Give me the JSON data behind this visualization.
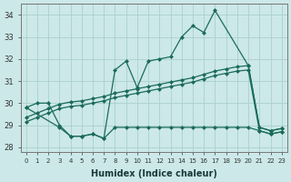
{
  "xlabel": "Humidex (Indice chaleur)",
  "background_color": "#cce8e8",
  "line_color": "#1a6b5a",
  "grid_color": "#aacfcf",
  "xlim": [
    -0.5,
    23.5
  ],
  "ylim": [
    27.8,
    34.5
  ],
  "yticks": [
    28,
    29,
    30,
    31,
    32,
    33,
    34
  ],
  "xticks": [
    0,
    1,
    2,
    3,
    4,
    5,
    6,
    7,
    8,
    9,
    10,
    11,
    12,
    13,
    14,
    15,
    16,
    17,
    18,
    19,
    20,
    21,
    22,
    23
  ],
  "main_x": [
    0,
    1,
    2,
    3,
    4,
    5,
    6,
    7,
    8,
    9,
    10,
    11,
    12,
    13,
    14,
    15,
    16,
    17,
    20,
    21,
    22,
    23
  ],
  "main_y": [
    29.8,
    30.0,
    30.0,
    29.0,
    28.5,
    28.5,
    28.6,
    28.4,
    31.5,
    31.9,
    30.7,
    31.9,
    32.0,
    32.1,
    33.0,
    33.5,
    33.2,
    34.2,
    31.7,
    28.9,
    28.75,
    28.85
  ],
  "line2_x": [
    0,
    1,
    2,
    3,
    4,
    5,
    6,
    7,
    8,
    9,
    10,
    11,
    12,
    13,
    14,
    15,
    16,
    17,
    18,
    19,
    20,
    21,
    22,
    23
  ],
  "line2_y": [
    29.35,
    29.55,
    29.75,
    29.95,
    30.05,
    30.1,
    30.2,
    30.3,
    30.45,
    30.55,
    30.65,
    30.75,
    30.85,
    30.95,
    31.05,
    31.15,
    31.3,
    31.45,
    31.55,
    31.65,
    31.7,
    28.9,
    28.75,
    28.85
  ],
  "line3_x": [
    0,
    1,
    2,
    3,
    4,
    5,
    6,
    7,
    8,
    9,
    10,
    11,
    12,
    13,
    14,
    15,
    16,
    17,
    18,
    19,
    20,
    21,
    22,
    23
  ],
  "line3_y": [
    29.15,
    29.35,
    29.55,
    29.75,
    29.85,
    29.9,
    30.0,
    30.1,
    30.25,
    30.35,
    30.45,
    30.55,
    30.65,
    30.75,
    30.85,
    30.95,
    31.1,
    31.25,
    31.35,
    31.45,
    31.5,
    28.75,
    28.6,
    28.7
  ],
  "flat_x": [
    0,
    3,
    4,
    5,
    6,
    7,
    8,
    9,
    10,
    11,
    12,
    13,
    14,
    15,
    16,
    17,
    18,
    19,
    20,
    21,
    22,
    23
  ],
  "flat_y": [
    29.8,
    28.9,
    28.5,
    28.5,
    28.6,
    28.4,
    28.9,
    28.9,
    28.9,
    28.9,
    28.9,
    28.9,
    28.9,
    28.9,
    28.9,
    28.9,
    28.9,
    28.9,
    28.9,
    28.75,
    28.6,
    28.7
  ]
}
